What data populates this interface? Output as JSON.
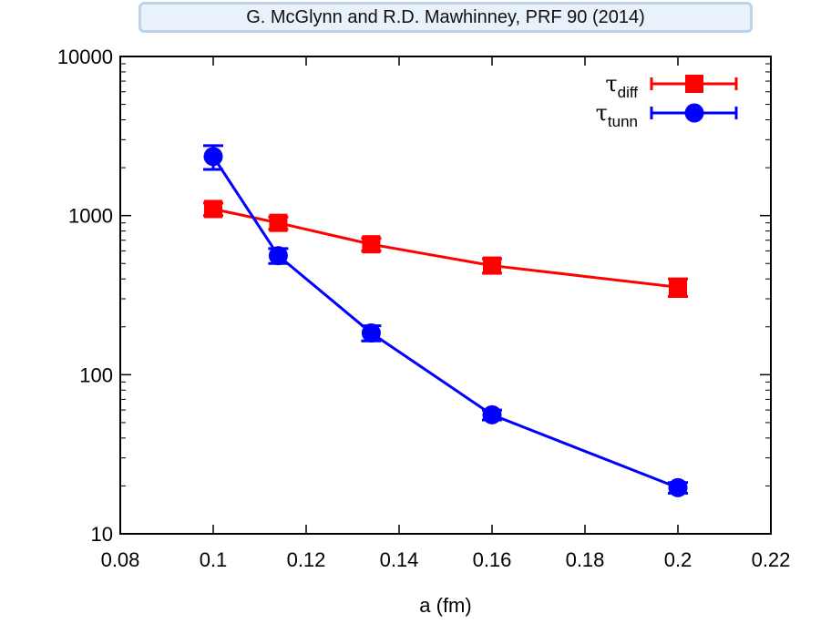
{
  "banner": {
    "text": "G. McGlynn and R.D. Mawhinney, PRF 90 (2014)"
  },
  "chart_data": {
    "type": "line",
    "title": "",
    "xlabel": "a (fm)",
    "ylabel": "",
    "xlim": [
      0.08,
      0.22
    ],
    "ylim": [
      10,
      10000
    ],
    "yscale": "log",
    "grid": false,
    "legend_position": "top-right",
    "x_ticks": [
      "0.08",
      "0.1",
      "0.12",
      "0.14",
      "0.16",
      "0.18",
      "0.2",
      "0.22"
    ],
    "y_ticks": [
      "10",
      "100",
      "1000",
      "10000"
    ],
    "series": [
      {
        "name_symbol": "τ",
        "name_sub": "diff",
        "color": "#ff0000",
        "marker": "square",
        "points": [
          {
            "x": 0.1,
            "y": 1100,
            "err": 100
          },
          {
            "x": 0.114,
            "y": 900,
            "err": 80
          },
          {
            "x": 0.134,
            "y": 660,
            "err": 60
          },
          {
            "x": 0.16,
            "y": 485,
            "err": 50
          },
          {
            "x": 0.2,
            "y": 355,
            "err": 45
          }
        ]
      },
      {
        "name_symbol": "τ",
        "name_sub": "tunn",
        "color": "#0000ff",
        "marker": "circle",
        "points": [
          {
            "x": 0.1,
            "y": 2350,
            "err": 400
          },
          {
            "x": 0.114,
            "y": 560,
            "err": 60
          },
          {
            "x": 0.134,
            "y": 183,
            "err": 20
          },
          {
            "x": 0.16,
            "y": 56,
            "err": 4
          },
          {
            "x": 0.2,
            "y": 19.5,
            "err": 1.5
          }
        ]
      }
    ]
  }
}
